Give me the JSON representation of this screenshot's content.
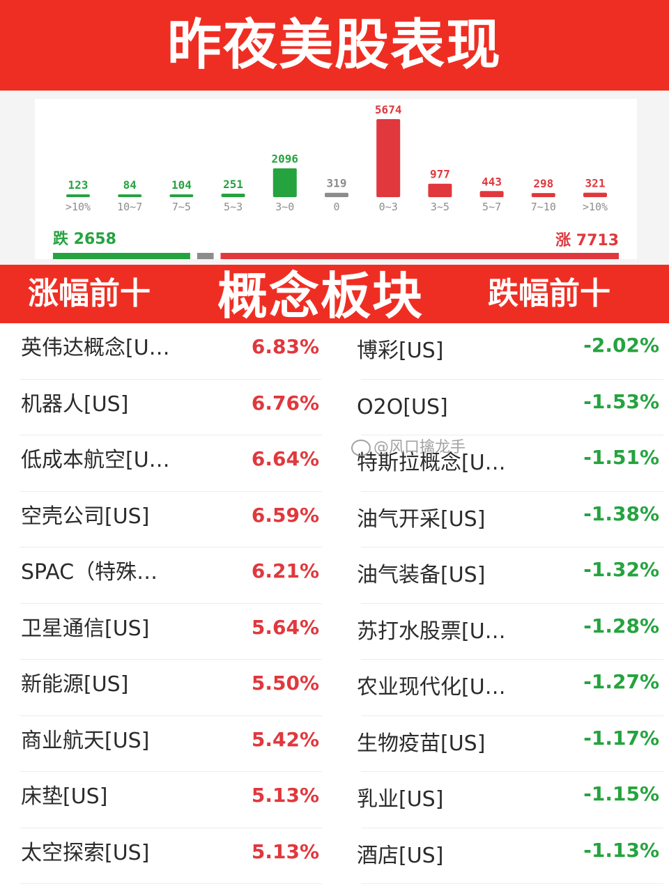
{
  "colors": {
    "up": "#e0383d",
    "down": "#25a33f",
    "flat": "#8c8c8c",
    "banner": "#ef2e23"
  },
  "title": "昨夜美股表现",
  "chart_data": {
    "type": "bar",
    "categories": [
      ">10%",
      "10~7",
      "7~5",
      "5~3",
      "3~0",
      "0",
      "0~3",
      "3~5",
      "5~7",
      "7~10",
      ">10%"
    ],
    "values": [
      123,
      84,
      104,
      251,
      2096,
      319,
      5674,
      977,
      443,
      298,
      321
    ],
    "series_colors": [
      "down",
      "down",
      "down",
      "down",
      "down",
      "flat",
      "up",
      "up",
      "up",
      "up",
      "up"
    ],
    "ylim": [
      0,
      5674
    ],
    "fall_label": "跌",
    "fall_total": 2658,
    "rise_label": "涨",
    "rise_total": 7713
  },
  "sections": {
    "left_title": "涨幅前十",
    "center_title": "概念板块",
    "right_title": "跌幅前十"
  },
  "gainers": [
    {
      "name": "英伟达概念[U…",
      "value": "6.83%"
    },
    {
      "name": "机器人[US]",
      "value": "6.76%"
    },
    {
      "name": "低成本航空[U…",
      "value": "6.64%"
    },
    {
      "name": "空壳公司[US]",
      "value": "6.59%"
    },
    {
      "name": "SPAC（特殊…",
      "value": "6.21%"
    },
    {
      "name": "卫星通信[US]",
      "value": "5.64%"
    },
    {
      "name": "新能源[US]",
      "value": "5.50%"
    },
    {
      "name": "商业航天[US]",
      "value": "5.42%"
    },
    {
      "name": "床垫[US]",
      "value": "5.13%"
    },
    {
      "name": "太空探索[US]",
      "value": "5.13%"
    }
  ],
  "losers": [
    {
      "name": "博彩[US]",
      "value": "-2.02%"
    },
    {
      "name": "O2O[US]",
      "value": "-1.53%"
    },
    {
      "name": "特斯拉概念[U…",
      "value": "-1.51%"
    },
    {
      "name": "油气开采[US]",
      "value": "-1.38%"
    },
    {
      "name": "油气装备[US]",
      "value": "-1.32%"
    },
    {
      "name": "苏打水股票[U…",
      "value": "-1.28%"
    },
    {
      "name": "农业现代化[U…",
      "value": "-1.27%"
    },
    {
      "name": "生物疫苗[US]",
      "value": "-1.17%"
    },
    {
      "name": "乳业[US]",
      "value": "-1.15%"
    },
    {
      "name": "酒店[US]",
      "value": "-1.13%"
    }
  ],
  "watermark": "@风口擒龙手"
}
